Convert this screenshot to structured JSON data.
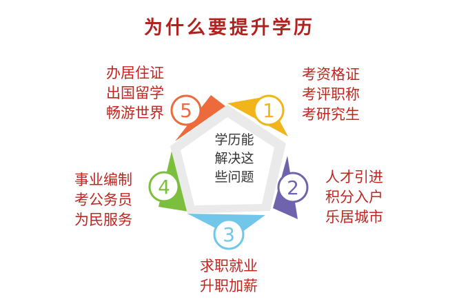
{
  "title": "为什么要提升学历",
  "center": {
    "lines": [
      "学历能",
      "解决这",
      "些问题"
    ]
  },
  "items": [
    {
      "number": "1",
      "color": "#f2b41b",
      "lines": [
        "考资格证",
        "考评职称",
        "考研究生"
      ]
    },
    {
      "number": "2",
      "color": "#6f63ad",
      "lines": [
        "人才引进",
        "积分入户",
        "乐居城市"
      ]
    },
    {
      "number": "3",
      "color": "#72c6ea",
      "lines": [
        "求职就业",
        "升职加薪"
      ]
    },
    {
      "number": "4",
      "color": "#7cbf3e",
      "lines": [
        "事业编制",
        "考公务员",
        "为民服务"
      ]
    },
    {
      "number": "5",
      "color": "#ec6a3b",
      "lines": [
        "办居住证",
        "出国留学",
        "畅游世界"
      ]
    }
  ],
  "colors": {
    "title": "#b3211e",
    "label_text": "#c0251f",
    "pentagon_fill": "#eaeaea",
    "badge_fill": "#ffffff"
  }
}
